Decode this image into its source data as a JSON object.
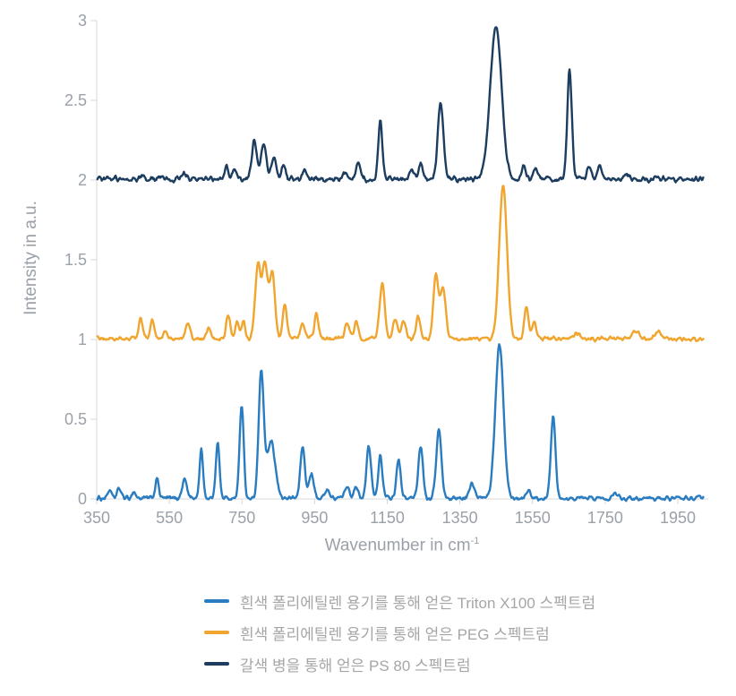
{
  "chart_data": {
    "type": "line",
    "title": "",
    "xlabel": "Wavenumber in cm",
    "xlabel_superscript": "-1",
    "ylabel": "Intensity in a.u.",
    "x_range": [
      350,
      2020
    ],
    "x_ticks": [
      350,
      550,
      750,
      950,
      1150,
      1350,
      1550,
      1750,
      1950
    ],
    "y_range": [
      0,
      3
    ],
    "y_ticks": [
      0,
      0.5,
      1,
      1.5,
      2,
      2.5,
      3
    ],
    "grid": false,
    "legend_position": "bottom",
    "axis_color": "#d9d9d9",
    "tick_label_color": "#9ba1a9",
    "legend_text_color": "#a6a6a6",
    "series": [
      {
        "name": "triton-x100",
        "label": "흰색 폴리에틸렌 용기를 통해 얻은 Triton X100 스펙트럼",
        "color": "#2a7cc0",
        "baseline_offset": 0,
        "noise_amplitude": 0.016,
        "peaks": [
          [
            385,
            0.05,
            7
          ],
          [
            412,
            0.06,
            8
          ],
          [
            452,
            0.04,
            7
          ],
          [
            516,
            0.12,
            7
          ],
          [
            592,
            0.12,
            9
          ],
          [
            638,
            0.3,
            7
          ],
          [
            683,
            0.36,
            7
          ],
          [
            749,
            0.58,
            8
          ],
          [
            803,
            0.78,
            10
          ],
          [
            830,
            0.35,
            16
          ],
          [
            917,
            0.32,
            9
          ],
          [
            941,
            0.15,
            9
          ],
          [
            984,
            0.06,
            8
          ],
          [
            1040,
            0.08,
            9
          ],
          [
            1065,
            0.07,
            8
          ],
          [
            1099,
            0.32,
            9
          ],
          [
            1131,
            0.27,
            8
          ],
          [
            1181,
            0.24,
            8
          ],
          [
            1242,
            0.33,
            9
          ],
          [
            1292,
            0.43,
            10
          ],
          [
            1383,
            0.09,
            10
          ],
          [
            1459,
            0.97,
            16
          ],
          [
            1538,
            0.05,
            9
          ],
          [
            1607,
            0.52,
            9
          ],
          [
            1777,
            0.04,
            10
          ]
        ]
      },
      {
        "name": "peg",
        "label": "흰색 폴리에틸렌 용기를 통해 얻은 PEG 스펙트럼",
        "color": "#f0a52f",
        "baseline_offset": 1,
        "noise_amplitude": 0.015,
        "peaks": [
          [
            471,
            0.13,
            8
          ],
          [
            503,
            0.11,
            8
          ],
          [
            540,
            0.05,
            7
          ],
          [
            601,
            0.1,
            8
          ],
          [
            658,
            0.07,
            8
          ],
          [
            712,
            0.14,
            8
          ],
          [
            737,
            0.12,
            7
          ],
          [
            754,
            0.11,
            7
          ],
          [
            794,
            0.45,
            11
          ],
          [
            814,
            0.46,
            11
          ],
          [
            834,
            0.4,
            10
          ],
          [
            868,
            0.22,
            8
          ],
          [
            917,
            0.09,
            9
          ],
          [
            955,
            0.15,
            8
          ],
          [
            1040,
            0.1,
            9
          ],
          [
            1065,
            0.11,
            8
          ],
          [
            1136,
            0.35,
            10
          ],
          [
            1172,
            0.13,
            8
          ],
          [
            1195,
            0.12,
            8
          ],
          [
            1235,
            0.14,
            8
          ],
          [
            1284,
            0.4,
            10
          ],
          [
            1304,
            0.32,
            10
          ],
          [
            1469,
            0.97,
            15
          ],
          [
            1533,
            0.2,
            8
          ],
          [
            1555,
            0.11,
            8
          ],
          [
            1674,
            0.04,
            10
          ],
          [
            1834,
            0.05,
            12
          ],
          [
            1896,
            0.04,
            10
          ]
        ]
      },
      {
        "name": "ps-80",
        "label": "갈색 병을 통해 얻은 PS 80 스펙트럼",
        "color": "#1c3d5f",
        "baseline_offset": 2,
        "noise_amplitude": 0.02,
        "peaks": [
          [
            478,
            0.03,
            8
          ],
          [
            589,
            0.04,
            8
          ],
          [
            707,
            0.08,
            8
          ],
          [
            730,
            0.06,
            7
          ],
          [
            784,
            0.24,
            10
          ],
          [
            810,
            0.22,
            10
          ],
          [
            838,
            0.12,
            10
          ],
          [
            865,
            0.09,
            8
          ],
          [
            922,
            0.06,
            8
          ],
          [
            1033,
            0.05,
            8
          ],
          [
            1070,
            0.11,
            8
          ],
          [
            1131,
            0.36,
            8
          ],
          [
            1218,
            0.07,
            8
          ],
          [
            1242,
            0.1,
            8
          ],
          [
            1297,
            0.48,
            11
          ],
          [
            1449,
            0.96,
            22
          ],
          [
            1526,
            0.08,
            8
          ],
          [
            1558,
            0.07,
            8
          ],
          [
            1652,
            0.68,
            9
          ],
          [
            1706,
            0.08,
            8
          ],
          [
            1735,
            0.09,
            8
          ],
          [
            1809,
            0.03,
            9
          ]
        ]
      }
    ]
  }
}
